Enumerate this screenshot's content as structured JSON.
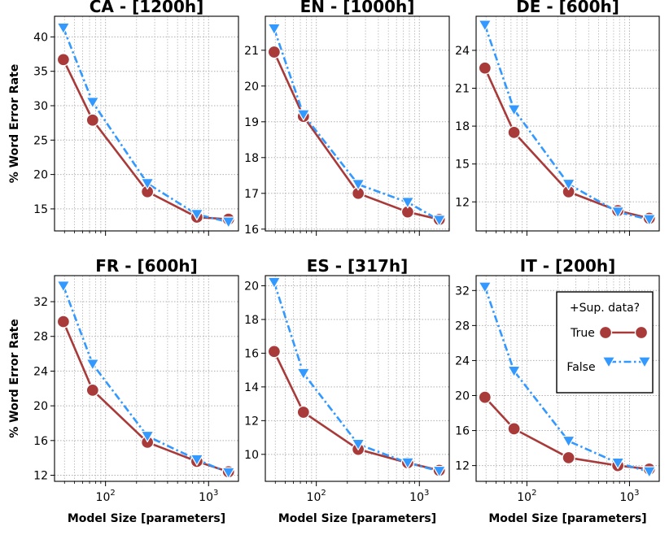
{
  "legend": {
    "title": "+Sup. data?",
    "entries": [
      "True",
      "False"
    ]
  },
  "colors": {
    "true_series": "#A83A3A",
    "false_series": "#3399FF",
    "grid": "#b0b0b0"
  },
  "chart_data": [
    {
      "type": "line",
      "title": "CA - [1200h]",
      "ylabel": "% Word Error Rate",
      "xlabel": "",
      "xscale": "log",
      "x": [
        39,
        75,
        255,
        770,
        1560
      ],
      "ylim": [
        11.8,
        43
      ],
      "yticks": [
        15,
        20,
        25,
        30,
        35,
        40
      ],
      "series": [
        {
          "name": "True",
          "values": [
            36.7,
            27.9,
            17.5,
            13.8,
            13.5
          ]
        },
        {
          "name": "False",
          "values": [
            41.3,
            30.5,
            18.7,
            14.2,
            13.1
          ]
        }
      ]
    },
    {
      "type": "line",
      "title": "EN - [1000h]",
      "ylabel": "",
      "xlabel": "",
      "xscale": "log",
      "x": [
        39,
        75,
        255,
        770,
        1560
      ],
      "ylim": [
        15.95,
        21.95
      ],
      "yticks": [
        16,
        17,
        18,
        19,
        20,
        21
      ],
      "series": [
        {
          "name": "True",
          "values": [
            20.95,
            19.15,
            17.0,
            16.48,
            16.27
          ]
        },
        {
          "name": "False",
          "values": [
            21.6,
            19.2,
            17.25,
            16.75,
            16.25
          ]
        }
      ]
    },
    {
      "type": "line",
      "title": "DE - [600h]",
      "ylabel": "",
      "xlabel": "",
      "xscale": "log",
      "x": [
        39,
        75,
        255,
        770,
        1560
      ],
      "ylim": [
        9.7,
        26.7
      ],
      "yticks": [
        12,
        15,
        18,
        21,
        24
      ],
      "series": [
        {
          "name": "True",
          "values": [
            22.6,
            17.5,
            12.8,
            11.3,
            10.7
          ]
        },
        {
          "name": "False",
          "values": [
            26.0,
            19.3,
            13.4,
            11.2,
            10.6
          ]
        }
      ]
    },
    {
      "type": "line",
      "title": "FR - [600h]",
      "ylabel": "% Word Error Rate",
      "xlabel": "Model Size [parameters]",
      "xscale": "log",
      "x": [
        39,
        75,
        255,
        770,
        1560
      ],
      "ylim": [
        11.3,
        35
      ],
      "yticks": [
        12,
        16,
        20,
        24,
        28,
        32
      ],
      "series": [
        {
          "name": "True",
          "values": [
            29.7,
            21.8,
            15.8,
            13.6,
            12.4
          ]
        },
        {
          "name": "False",
          "values": [
            33.8,
            24.8,
            16.5,
            13.8,
            12.3
          ]
        }
      ]
    },
    {
      "type": "line",
      "title": "ES - [317h]",
      "ylabel": "",
      "xlabel": "Model Size [parameters]",
      "xscale": "log",
      "x": [
        39,
        75,
        255,
        770,
        1560
      ],
      "ylim": [
        8.4,
        20.6
      ],
      "yticks": [
        10,
        12,
        14,
        16,
        18,
        20
      ],
      "series": [
        {
          "name": "True",
          "values": [
            16.1,
            12.5,
            10.3,
            9.5,
            9.05
          ]
        },
        {
          "name": "False",
          "values": [
            20.2,
            14.8,
            10.6,
            9.5,
            9.0
          ]
        }
      ]
    },
    {
      "type": "line",
      "title": "IT - [200h]",
      "ylabel": "",
      "xlabel": "Model Size [parameters]",
      "xscale": "log",
      "x": [
        39,
        75,
        255,
        770,
        1560
      ],
      "ylim": [
        10.2,
        33.7
      ],
      "yticks": [
        12,
        16,
        20,
        24,
        28,
        32
      ],
      "legend": "top-right",
      "series": [
        {
          "name": "True",
          "values": [
            19.8,
            16.2,
            12.9,
            12.0,
            11.6
          ]
        },
        {
          "name": "False",
          "values": [
            32.4,
            22.8,
            14.8,
            12.3,
            11.3
          ]
        }
      ]
    }
  ]
}
